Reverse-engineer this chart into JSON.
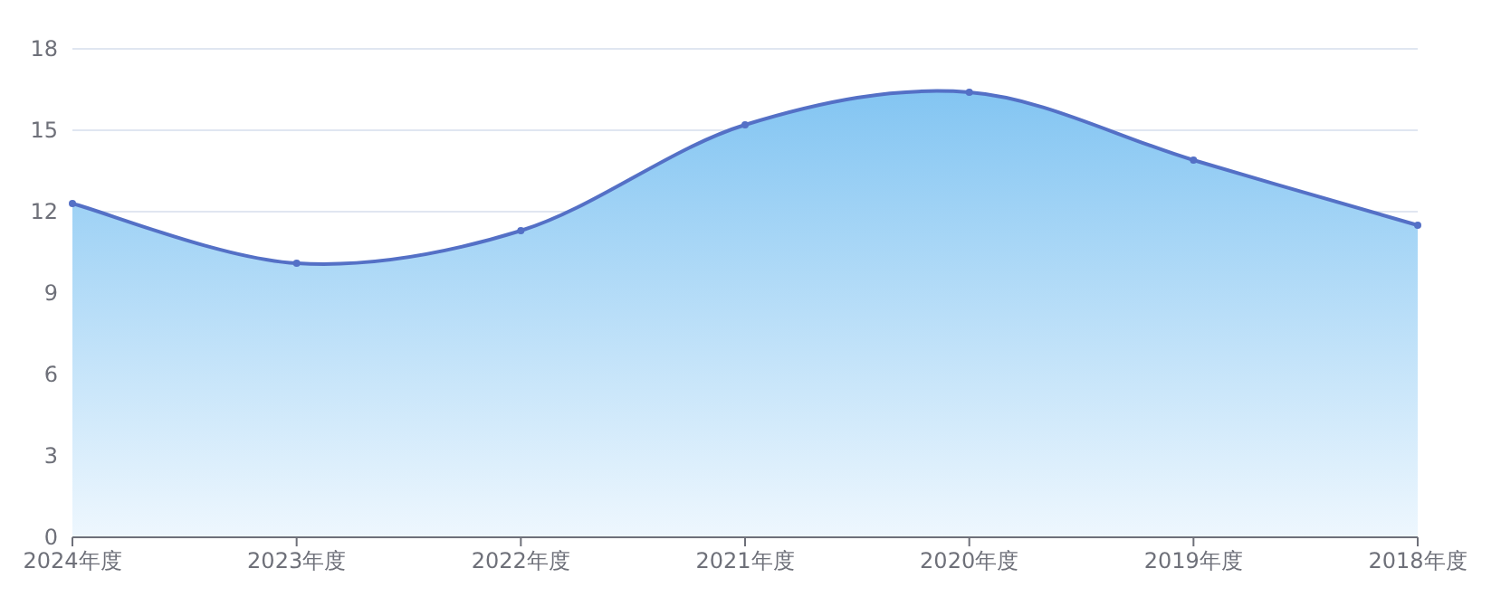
{
  "chart_data": {
    "type": "area",
    "categories": [
      "2024年度",
      "2023年度",
      "2022年度",
      "2021年度",
      "2020年度",
      "2019年度",
      "2018年度"
    ],
    "series": [
      {
        "color": "#5470c6",
        "values": [
          12.3,
          10.1,
          11.3,
          15.2,
          16.4,
          13.9,
          11.5
        ]
      }
    ],
    "ylim": [
      0,
      18
    ],
    "yticks": [
      0,
      3,
      6,
      9,
      12,
      15,
      18
    ],
    "grid": "y",
    "marker": "circle",
    "line_style": "solid"
  }
}
